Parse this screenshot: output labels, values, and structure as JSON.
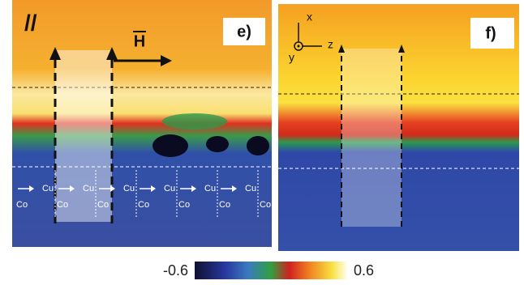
{
  "panel_e": {
    "marker": "//",
    "label": "e)",
    "field": "H",
    "layer_labels": {
      "top": [
        "Cu",
        "Cu",
        "Cu",
        "Cu",
        "Cu",
        "Cu"
      ],
      "bottom": [
        "Co",
        "Co",
        "Co",
        "Co",
        "Co",
        "Co",
        "Co"
      ]
    }
  },
  "panel_f": {
    "label": "f)",
    "axes": {
      "x": "x",
      "y": "y",
      "z": "z"
    }
  },
  "colorbar": {
    "min": "-0.6",
    "max": "0.6"
  }
}
